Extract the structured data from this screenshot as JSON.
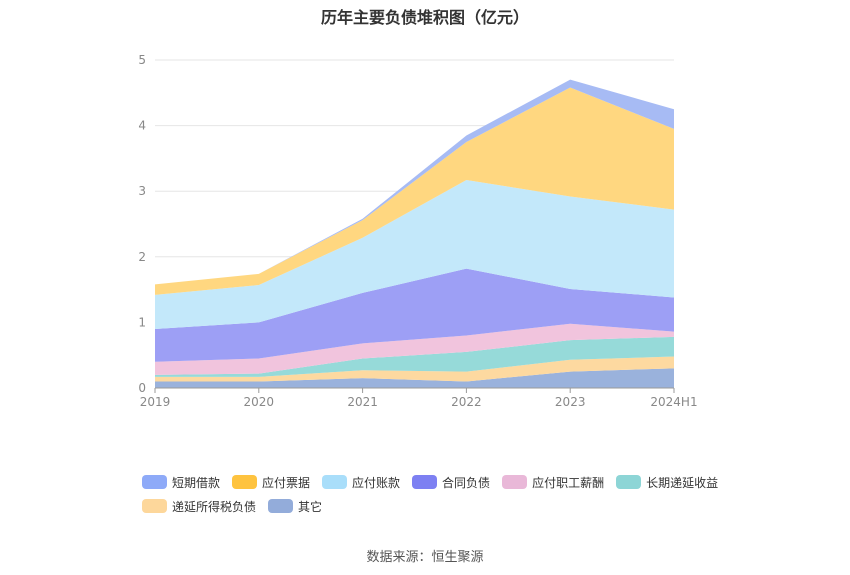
{
  "chart_data": {
    "type": "area",
    "stacked": true,
    "title": "历年主要负债堆积图（亿元）",
    "categories": [
      "2019",
      "2020",
      "2021",
      "2022",
      "2023",
      "2024H1"
    ],
    "ylim": [
      0,
      5
    ],
    "yticks": [
      "0",
      "1",
      "2",
      "3",
      "4",
      "5"
    ],
    "series": [
      {
        "name": "其它",
        "color": "#9ab2dc",
        "values": [
          0.1,
          0.1,
          0.15,
          0.1,
          0.25,
          0.3
        ]
      },
      {
        "name": "递延所得税负债",
        "color": "#fdd9a0",
        "values": [
          0.07,
          0.07,
          0.12,
          0.15,
          0.18,
          0.18
        ]
      },
      {
        "name": "长期递延收益",
        "color": "#96dad9",
        "values": [
          0.03,
          0.05,
          0.18,
          0.3,
          0.3,
          0.3
        ]
      },
      {
        "name": "应付职工薪酬",
        "color": "#f1c4dd",
        "values": [
          0.2,
          0.23,
          0.23,
          0.25,
          0.25,
          0.08
        ]
      },
      {
        "name": "合同负债",
        "color": "#9d9ff5",
        "values": [
          0.5,
          0.55,
          0.77,
          1.02,
          0.53,
          0.52
        ]
      },
      {
        "name": "应付账款",
        "color": "#c3e8fa",
        "values": [
          0.52,
          0.57,
          0.84,
          1.35,
          1.41,
          1.34
        ]
      },
      {
        "name": "应付票据",
        "color": "#ffd780",
        "values": [
          0.16,
          0.17,
          0.27,
          0.58,
          1.66,
          1.23
        ]
      },
      {
        "name": "短期借款",
        "color": "#a7bbf4",
        "values": [
          0.0,
          0.0,
          0.02,
          0.1,
          0.12,
          0.3
        ]
      }
    ]
  },
  "legend": [
    {
      "name": "短期借款",
      "color": "#8eaaf8"
    },
    {
      "name": "应付票据",
      "color": "#fec33f"
    },
    {
      "name": "应付账款",
      "color": "#a9defa"
    },
    {
      "name": "合同负债",
      "color": "#7d80f2"
    },
    {
      "name": "应付职工薪酬",
      "color": "#e9b8d8"
    },
    {
      "name": "长期递延收益",
      "color": "#8dd5d6"
    },
    {
      "name": "递延所得税负债",
      "color": "#fdd79b"
    },
    {
      "name": "其它",
      "color": "#93acda"
    }
  ],
  "source": "数据来源：恒生聚源"
}
